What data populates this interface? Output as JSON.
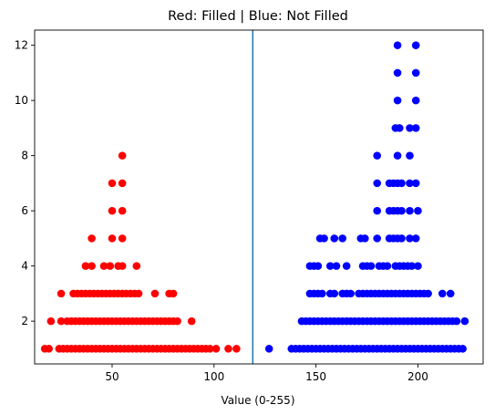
{
  "chart_data": {
    "type": "scatter",
    "title": "Red: Filled | Blue: Not Filled",
    "xlabel": "Value (0-255)",
    "ylabel": "",
    "xlim": [
      12,
      232
    ],
    "ylim": [
      0.45,
      12.55
    ],
    "xticks": [
      50,
      100,
      150,
      200
    ],
    "yticks": [
      2,
      4,
      6,
      8,
      10,
      12
    ],
    "grid": false,
    "legend": "none",
    "threshold_line": {
      "x": 119,
      "color": "#1f77b4"
    },
    "series": [
      {
        "color": "#ff0000",
        "points": [
          [
            17,
            1
          ],
          [
            19,
            1
          ],
          [
            24,
            1
          ],
          [
            26,
            1
          ],
          [
            28,
            1
          ],
          [
            30,
            1
          ],
          [
            32,
            1
          ],
          [
            34,
            1
          ],
          [
            36,
            1
          ],
          [
            38,
            1
          ],
          [
            40,
            1
          ],
          [
            42,
            1
          ],
          [
            44,
            1
          ],
          [
            46,
            1
          ],
          [
            48,
            1
          ],
          [
            50,
            1
          ],
          [
            52,
            1
          ],
          [
            54,
            1
          ],
          [
            56,
            1
          ],
          [
            58,
            1
          ],
          [
            60,
            1
          ],
          [
            62,
            1
          ],
          [
            64,
            1
          ],
          [
            66,
            1
          ],
          [
            68,
            1
          ],
          [
            70,
            1
          ],
          [
            72,
            1
          ],
          [
            74,
            1
          ],
          [
            76,
            1
          ],
          [
            78,
            1
          ],
          [
            80,
            1
          ],
          [
            82,
            1
          ],
          [
            84,
            1
          ],
          [
            86,
            1
          ],
          [
            88,
            1
          ],
          [
            90,
            1
          ],
          [
            92,
            1
          ],
          [
            94,
            1
          ],
          [
            96,
            1
          ],
          [
            98,
            1
          ],
          [
            101,
            1
          ],
          [
            107,
            1
          ],
          [
            111,
            1
          ],
          [
            20,
            2
          ],
          [
            25,
            2
          ],
          [
            28,
            2
          ],
          [
            30,
            2
          ],
          [
            32,
            2
          ],
          [
            34,
            2
          ],
          [
            36,
            2
          ],
          [
            38,
            2
          ],
          [
            40,
            2
          ],
          [
            42,
            2
          ],
          [
            44,
            2
          ],
          [
            46,
            2
          ],
          [
            48,
            2
          ],
          [
            50,
            2
          ],
          [
            52,
            2
          ],
          [
            54,
            2
          ],
          [
            56,
            2
          ],
          [
            58,
            2
          ],
          [
            60,
            2
          ],
          [
            62,
            2
          ],
          [
            64,
            2
          ],
          [
            66,
            2
          ],
          [
            68,
            2
          ],
          [
            70,
            2
          ],
          [
            72,
            2
          ],
          [
            74,
            2
          ],
          [
            76,
            2
          ],
          [
            78,
            2
          ],
          [
            80,
            2
          ],
          [
            82,
            2
          ],
          [
            89,
            2
          ],
          [
            25,
            3
          ],
          [
            31,
            3
          ],
          [
            33,
            3
          ],
          [
            35,
            3
          ],
          [
            37,
            3
          ],
          [
            39,
            3
          ],
          [
            41,
            3
          ],
          [
            43,
            3
          ],
          [
            45,
            3
          ],
          [
            47,
            3
          ],
          [
            49,
            3
          ],
          [
            51,
            3
          ],
          [
            53,
            3
          ],
          [
            55,
            3
          ],
          [
            57,
            3
          ],
          [
            59,
            3
          ],
          [
            61,
            3
          ],
          [
            63,
            3
          ],
          [
            71,
            3
          ],
          [
            78,
            3
          ],
          [
            80,
            3
          ],
          [
            37,
            4
          ],
          [
            40,
            4
          ],
          [
            46,
            4
          ],
          [
            49,
            4
          ],
          [
            53,
            4
          ],
          [
            55,
            4
          ],
          [
            62,
            4
          ],
          [
            40,
            5
          ],
          [
            50,
            5
          ],
          [
            55,
            5
          ],
          [
            50,
            6
          ],
          [
            55,
            6
          ],
          [
            50,
            7
          ],
          [
            55,
            7
          ],
          [
            55,
            8
          ]
        ]
      },
      {
        "color": "#0000ff",
        "points": [
          [
            127,
            1
          ],
          [
            138,
            1
          ],
          [
            140,
            1
          ],
          [
            142,
            1
          ],
          [
            144,
            1
          ],
          [
            146,
            1
          ],
          [
            148,
            1
          ],
          [
            150,
            1
          ],
          [
            152,
            1
          ],
          [
            154,
            1
          ],
          [
            156,
            1
          ],
          [
            158,
            1
          ],
          [
            160,
            1
          ],
          [
            162,
            1
          ],
          [
            164,
            1
          ],
          [
            166,
            1
          ],
          [
            168,
            1
          ],
          [
            170,
            1
          ],
          [
            172,
            1
          ],
          [
            174,
            1
          ],
          [
            176,
            1
          ],
          [
            178,
            1
          ],
          [
            180,
            1
          ],
          [
            182,
            1
          ],
          [
            184,
            1
          ],
          [
            186,
            1
          ],
          [
            188,
            1
          ],
          [
            190,
            1
          ],
          [
            192,
            1
          ],
          [
            194,
            1
          ],
          [
            196,
            1
          ],
          [
            198,
            1
          ],
          [
            200,
            1
          ],
          [
            202,
            1
          ],
          [
            204,
            1
          ],
          [
            206,
            1
          ],
          [
            208,
            1
          ],
          [
            210,
            1
          ],
          [
            212,
            1
          ],
          [
            214,
            1
          ],
          [
            216,
            1
          ],
          [
            218,
            1
          ],
          [
            220,
            1
          ],
          [
            222,
            1
          ],
          [
            143,
            2
          ],
          [
            145,
            2
          ],
          [
            147,
            2
          ],
          [
            149,
            2
          ],
          [
            151,
            2
          ],
          [
            153,
            2
          ],
          [
            155,
            2
          ],
          [
            157,
            2
          ],
          [
            159,
            2
          ],
          [
            161,
            2
          ],
          [
            163,
            2
          ],
          [
            165,
            2
          ],
          [
            167,
            2
          ],
          [
            169,
            2
          ],
          [
            171,
            2
          ],
          [
            173,
            2
          ],
          [
            175,
            2
          ],
          [
            177,
            2
          ],
          [
            179,
            2
          ],
          [
            181,
            2
          ],
          [
            183,
            2
          ],
          [
            185,
            2
          ],
          [
            187,
            2
          ],
          [
            189,
            2
          ],
          [
            191,
            2
          ],
          [
            193,
            2
          ],
          [
            195,
            2
          ],
          [
            197,
            2
          ],
          [
            199,
            2
          ],
          [
            201,
            2
          ],
          [
            203,
            2
          ],
          [
            205,
            2
          ],
          [
            207,
            2
          ],
          [
            209,
            2
          ],
          [
            211,
            2
          ],
          [
            213,
            2
          ],
          [
            215,
            2
          ],
          [
            217,
            2
          ],
          [
            219,
            2
          ],
          [
            223,
            2
          ],
          [
            147,
            3
          ],
          [
            149,
            3
          ],
          [
            151,
            3
          ],
          [
            153,
            3
          ],
          [
            157,
            3
          ],
          [
            159,
            3
          ],
          [
            163,
            3
          ],
          [
            165,
            3
          ],
          [
            167,
            3
          ],
          [
            171,
            3
          ],
          [
            173,
            3
          ],
          [
            175,
            3
          ],
          [
            177,
            3
          ],
          [
            179,
            3
          ],
          [
            181,
            3
          ],
          [
            183,
            3
          ],
          [
            185,
            3
          ],
          [
            187,
            3
          ],
          [
            189,
            3
          ],
          [
            191,
            3
          ],
          [
            193,
            3
          ],
          [
            195,
            3
          ],
          [
            197,
            3
          ],
          [
            199,
            3
          ],
          [
            201,
            3
          ],
          [
            203,
            3
          ],
          [
            205,
            3
          ],
          [
            212,
            3
          ],
          [
            216,
            3
          ],
          [
            147,
            4
          ],
          [
            149,
            4
          ],
          [
            151,
            4
          ],
          [
            157,
            4
          ],
          [
            160,
            4
          ],
          [
            165,
            4
          ],
          [
            173,
            4
          ],
          [
            175,
            4
          ],
          [
            177,
            4
          ],
          [
            181,
            4
          ],
          [
            183,
            4
          ],
          [
            185,
            4
          ],
          [
            189,
            4
          ],
          [
            191,
            4
          ],
          [
            193,
            4
          ],
          [
            195,
            4
          ],
          [
            197,
            4
          ],
          [
            200,
            4
          ],
          [
            152,
            5
          ],
          [
            154,
            5
          ],
          [
            159,
            5
          ],
          [
            163,
            5
          ],
          [
            172,
            5
          ],
          [
            174,
            5
          ],
          [
            180,
            5
          ],
          [
            186,
            5
          ],
          [
            188,
            5
          ],
          [
            190,
            5
          ],
          [
            192,
            5
          ],
          [
            196,
            5
          ],
          [
            199,
            5
          ],
          [
            180,
            6
          ],
          [
            186,
            6
          ],
          [
            188,
            6
          ],
          [
            190,
            6
          ],
          [
            192,
            6
          ],
          [
            196,
            6
          ],
          [
            200,
            6
          ],
          [
            180,
            7
          ],
          [
            186,
            7
          ],
          [
            188,
            7
          ],
          [
            190,
            7
          ],
          [
            192,
            7
          ],
          [
            196,
            7
          ],
          [
            199,
            7
          ],
          [
            180,
            8
          ],
          [
            190,
            8
          ],
          [
            196,
            8
          ],
          [
            189,
            9
          ],
          [
            191,
            9
          ],
          [
            196,
            9
          ],
          [
            199,
            9
          ],
          [
            190,
            10
          ],
          [
            199,
            10
          ],
          [
            190,
            11
          ],
          [
            199,
            11
          ],
          [
            190,
            12
          ],
          [
            199,
            12
          ]
        ]
      }
    ]
  }
}
